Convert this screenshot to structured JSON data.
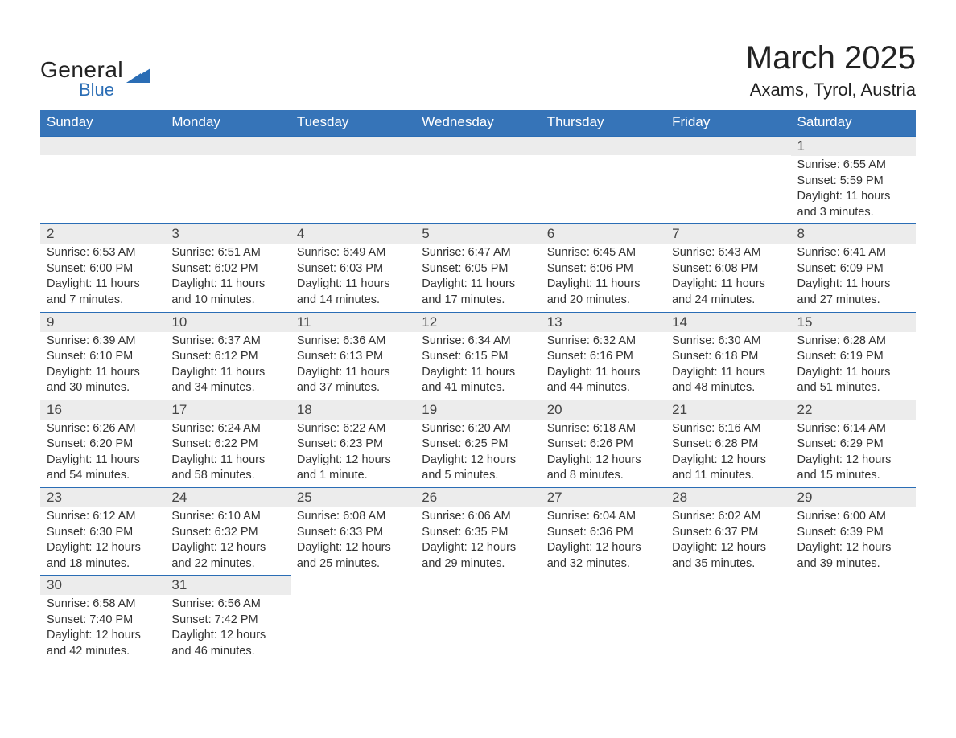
{
  "logo": {
    "text1": "General",
    "text2": "Blue",
    "shape_color": "#2a6db5"
  },
  "title": {
    "month": "March 2025",
    "location": "Axams, Tyrol, Austria"
  },
  "colors": {
    "header_bg": "#3674b8",
    "header_text": "#ffffff",
    "daynum_bg": "#ececec",
    "row_border": "#2a6db5",
    "body_text": "#333333"
  },
  "weekdays": [
    "Sunday",
    "Monday",
    "Tuesday",
    "Wednesday",
    "Thursday",
    "Friday",
    "Saturday"
  ],
  "labels": {
    "sunrise": "Sunrise:",
    "sunset": "Sunset:",
    "daylight": "Daylight:"
  },
  "weeks": [
    [
      null,
      null,
      null,
      null,
      null,
      null,
      {
        "day": "1",
        "sunrise": "6:55 AM",
        "sunset": "5:59 PM",
        "daylight": "11 hours and 3 minutes."
      }
    ],
    [
      {
        "day": "2",
        "sunrise": "6:53 AM",
        "sunset": "6:00 PM",
        "daylight": "11 hours and 7 minutes."
      },
      {
        "day": "3",
        "sunrise": "6:51 AM",
        "sunset": "6:02 PM",
        "daylight": "11 hours and 10 minutes."
      },
      {
        "day": "4",
        "sunrise": "6:49 AM",
        "sunset": "6:03 PM",
        "daylight": "11 hours and 14 minutes."
      },
      {
        "day": "5",
        "sunrise": "6:47 AM",
        "sunset": "6:05 PM",
        "daylight": "11 hours and 17 minutes."
      },
      {
        "day": "6",
        "sunrise": "6:45 AM",
        "sunset": "6:06 PM",
        "daylight": "11 hours and 20 minutes."
      },
      {
        "day": "7",
        "sunrise": "6:43 AM",
        "sunset": "6:08 PM",
        "daylight": "11 hours and 24 minutes."
      },
      {
        "day": "8",
        "sunrise": "6:41 AM",
        "sunset": "6:09 PM",
        "daylight": "11 hours and 27 minutes."
      }
    ],
    [
      {
        "day": "9",
        "sunrise": "6:39 AM",
        "sunset": "6:10 PM",
        "daylight": "11 hours and 30 minutes."
      },
      {
        "day": "10",
        "sunrise": "6:37 AM",
        "sunset": "6:12 PM",
        "daylight": "11 hours and 34 minutes."
      },
      {
        "day": "11",
        "sunrise": "6:36 AM",
        "sunset": "6:13 PM",
        "daylight": "11 hours and 37 minutes."
      },
      {
        "day": "12",
        "sunrise": "6:34 AM",
        "sunset": "6:15 PM",
        "daylight": "11 hours and 41 minutes."
      },
      {
        "day": "13",
        "sunrise": "6:32 AM",
        "sunset": "6:16 PM",
        "daylight": "11 hours and 44 minutes."
      },
      {
        "day": "14",
        "sunrise": "6:30 AM",
        "sunset": "6:18 PM",
        "daylight": "11 hours and 48 minutes."
      },
      {
        "day": "15",
        "sunrise": "6:28 AM",
        "sunset": "6:19 PM",
        "daylight": "11 hours and 51 minutes."
      }
    ],
    [
      {
        "day": "16",
        "sunrise": "6:26 AM",
        "sunset": "6:20 PM",
        "daylight": "11 hours and 54 minutes."
      },
      {
        "day": "17",
        "sunrise": "6:24 AM",
        "sunset": "6:22 PM",
        "daylight": "11 hours and 58 minutes."
      },
      {
        "day": "18",
        "sunrise": "6:22 AM",
        "sunset": "6:23 PM",
        "daylight": "12 hours and 1 minute."
      },
      {
        "day": "19",
        "sunrise": "6:20 AM",
        "sunset": "6:25 PM",
        "daylight": "12 hours and 5 minutes."
      },
      {
        "day": "20",
        "sunrise": "6:18 AM",
        "sunset": "6:26 PM",
        "daylight": "12 hours and 8 minutes."
      },
      {
        "day": "21",
        "sunrise": "6:16 AM",
        "sunset": "6:28 PM",
        "daylight": "12 hours and 11 minutes."
      },
      {
        "day": "22",
        "sunrise": "6:14 AM",
        "sunset": "6:29 PM",
        "daylight": "12 hours and 15 minutes."
      }
    ],
    [
      {
        "day": "23",
        "sunrise": "6:12 AM",
        "sunset": "6:30 PM",
        "daylight": "12 hours and 18 minutes."
      },
      {
        "day": "24",
        "sunrise": "6:10 AM",
        "sunset": "6:32 PM",
        "daylight": "12 hours and 22 minutes."
      },
      {
        "day": "25",
        "sunrise": "6:08 AM",
        "sunset": "6:33 PM",
        "daylight": "12 hours and 25 minutes."
      },
      {
        "day": "26",
        "sunrise": "6:06 AM",
        "sunset": "6:35 PM",
        "daylight": "12 hours and 29 minutes."
      },
      {
        "day": "27",
        "sunrise": "6:04 AM",
        "sunset": "6:36 PM",
        "daylight": "12 hours and 32 minutes."
      },
      {
        "day": "28",
        "sunrise": "6:02 AM",
        "sunset": "6:37 PM",
        "daylight": "12 hours and 35 minutes."
      },
      {
        "day": "29",
        "sunrise": "6:00 AM",
        "sunset": "6:39 PM",
        "daylight": "12 hours and 39 minutes."
      }
    ],
    [
      {
        "day": "30",
        "sunrise": "6:58 AM",
        "sunset": "7:40 PM",
        "daylight": "12 hours and 42 minutes."
      },
      {
        "day": "31",
        "sunrise": "6:56 AM",
        "sunset": "7:42 PM",
        "daylight": "12 hours and 46 minutes."
      },
      null,
      null,
      null,
      null,
      null
    ]
  ]
}
